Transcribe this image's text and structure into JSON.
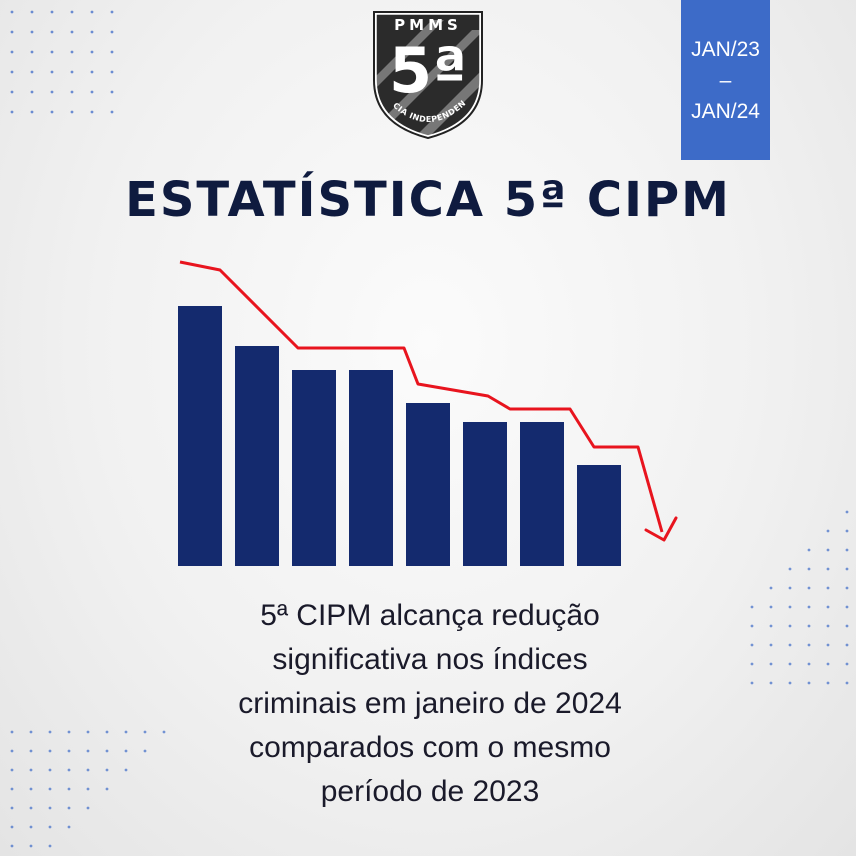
{
  "logo": {
    "top_text": "PMMS",
    "number": "5ª",
    "ring_text": "CIA INDEPENDENTE"
  },
  "date_box": {
    "start": "JAN/23",
    "separator": "–",
    "end": "JAN/24",
    "color": "#3d6bc8"
  },
  "title": "ESTATÍSTICA 5ª CIPM",
  "chart_data": {
    "type": "bar",
    "categories": [
      "",
      "",
      "",
      "",
      "",
      "",
      "",
      ""
    ],
    "values": [
      260,
      220,
      196,
      196,
      163,
      144,
      144,
      101
    ],
    "bar_color": "#142a6e",
    "trend_color": "#e8141e",
    "trend": "decreasing"
  },
  "caption": [
    "5ª CIPM alcança redução",
    "significativa nos índices",
    "criminais em janeiro de 2024",
    "comparados com o mesmo",
    "período de 2023"
  ],
  "colors": {
    "title": "#0f1b3f",
    "dots": "#3d6bc8"
  }
}
